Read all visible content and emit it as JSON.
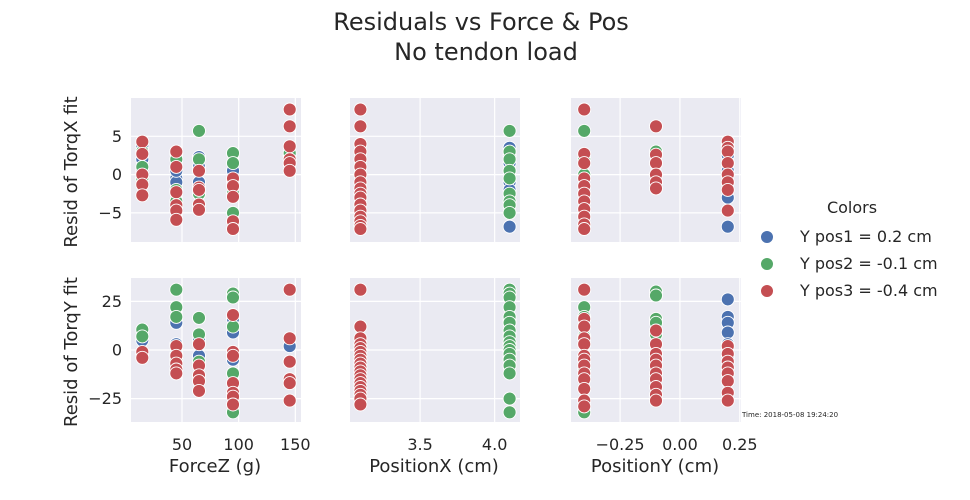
{
  "title_lines": [
    "Residuals vs Force & Pos",
    "No tendon load"
  ],
  "timestamp": "Time: 2018-05-08 19:24:20",
  "legend": {
    "title": "Colors",
    "items": [
      {
        "label": "Y pos1 = 0.2 cm",
        "color": "#4c72b0"
      },
      {
        "label": "Y pos2 = -0.1 cm",
        "color": "#55a868"
      },
      {
        "label": "Y pos3 = -0.4 cm",
        "color": "#c44e52"
      }
    ]
  },
  "chart_data": [
    {
      "type": "scatter",
      "row": 0,
      "col": 0,
      "xlabel": "",
      "ylabel": "Resid of TorqX fit",
      "xlim": [
        5,
        155
      ],
      "ylim": [
        -8.8,
        10
      ],
      "xticks": [
        50,
        100,
        150
      ],
      "yticks": [
        -5,
        0,
        5
      ],
      "series": [
        {
          "name": "Y pos1 = 0.2 cm",
          "x": [
            15,
            15,
            15,
            45,
            45,
            45,
            65,
            65,
            65,
            95,
            95,
            145,
            145
          ],
          "y": [
            3.8,
            2.0,
            0.5,
            -0.5,
            -1.0,
            0.5,
            2.3,
            1.0,
            -1.0,
            0.5,
            -1.0,
            2.5,
            1.5
          ]
        },
        {
          "name": "Y pos2 = -0.1 cm",
          "x": [
            15,
            15,
            15,
            45,
            45,
            45,
            45,
            65,
            65,
            65,
            95,
            95,
            95,
            95,
            145
          ],
          "y": [
            1.0,
            -0.5,
            3.0,
            2.8,
            2.0,
            -2.0,
            -3.5,
            5.7,
            2.0,
            -2.5,
            2.8,
            1.5,
            -2.5,
            -5.0,
            2.8
          ]
        },
        {
          "name": "Y pos3 = -0.4 cm",
          "x": [
            15,
            15,
            15,
            15,
            15,
            45,
            45,
            45,
            45,
            45,
            45,
            65,
            65,
            65,
            65,
            65,
            95,
            95,
            95,
            95,
            95,
            145,
            145,
            145,
            145,
            145,
            145
          ],
          "y": [
            4.3,
            2.7,
            0.0,
            -1.3,
            -2.7,
            3.0,
            1.0,
            -2.3,
            -4.0,
            -4.7,
            -5.9,
            0.5,
            -1.7,
            -2.0,
            -3.9,
            -4.6,
            -0.5,
            -1.5,
            -2.9,
            -6.1,
            -7.1,
            8.5,
            6.3,
            3.7,
            2.0,
            1.5,
            0.5
          ]
        }
      ]
    },
    {
      "type": "scatter",
      "row": 0,
      "col": 1,
      "xlabel": "",
      "ylabel": "",
      "xlim": [
        3.03,
        4.17
      ],
      "ylim": [
        -8.8,
        10
      ],
      "xticks": [
        3.5,
        4.0
      ],
      "yticks": [
        -5,
        0,
        5
      ],
      "series": [
        {
          "name": "Y pos1 = 0.2 cm",
          "x": [
            4.1,
            4.1,
            4.1,
            4.1,
            4.1,
            4.1,
            4.1
          ],
          "y": [
            3.5,
            2.5,
            1.5,
            0.5,
            -1.0,
            -2.0,
            -6.8
          ]
        },
        {
          "name": "Y pos2 = -0.1 cm",
          "x": [
            4.1,
            4.1,
            4.1,
            4.1,
            4.1,
            4.1,
            4.1,
            4.1,
            4.1
          ],
          "y": [
            5.7,
            3.0,
            2.0,
            0.5,
            -0.5,
            -2.5,
            -3.5,
            -4.0,
            -5.0
          ]
        },
        {
          "name": "Y pos3 = -0.4 cm",
          "x": [
            3.1,
            3.1,
            3.1,
            3.1,
            3.1,
            3.1,
            3.1,
            3.1,
            3.1,
            3.1,
            3.1,
            3.1,
            3.1,
            3.1,
            3.1,
            3.1,
            3.1
          ],
          "y": [
            8.5,
            6.3,
            4.0,
            3.0,
            2.0,
            1.0,
            0.0,
            -1.0,
            -1.8,
            -2.5,
            -3.0,
            -3.9,
            -4.7,
            -5.5,
            -6.1,
            -6.7,
            -7.1
          ]
        }
      ]
    },
    {
      "type": "scatter",
      "row": 0,
      "col": 2,
      "xlabel": "",
      "ylabel": "",
      "xlim": [
        -0.455,
        0.255
      ],
      "ylim": [
        -8.8,
        10
      ],
      "xticks": [
        -0.25,
        0.0,
        0.25
      ],
      "yticks": [
        -5,
        0,
        5
      ],
      "series": [
        {
          "name": "Y pos1 = 0.2 cm",
          "x": [
            0.2,
            0.2,
            0.2,
            0.2,
            0.2,
            0.2,
            0.2
          ],
          "y": [
            3.8,
            2.5,
            1.5,
            0.5,
            -1.0,
            -3.0,
            -6.8
          ]
        },
        {
          "name": "Y pos2 = -0.1 cm",
          "x": [
            -0.4,
            -0.4,
            -0.4,
            -0.4,
            -0.1,
            -0.1,
            -0.1
          ],
          "y": [
            5.7,
            2.0,
            0.0,
            -2.5,
            3.0,
            1.5,
            -1.0
          ]
        },
        {
          "name": "Y pos3 = -0.4 cm",
          "x": [
            -0.4,
            -0.4,
            -0.4,
            -0.4,
            -0.4,
            -0.4,
            -0.4,
            -0.4,
            -0.4,
            -0.4,
            -0.4,
            -0.1,
            -0.1,
            -0.1,
            -0.1,
            -0.1,
            -0.1,
            0.2,
            0.2,
            0.2,
            0.2,
            0.2,
            0.2,
            0.2,
            0.2
          ],
          "y": [
            8.5,
            2.7,
            1.5,
            -0.5,
            -1.5,
            -2.5,
            -3.5,
            -4.5,
            -5.5,
            -6.5,
            -7.1,
            6.3,
            2.6,
            1.5,
            0.0,
            -1.0,
            -1.8,
            4.3,
            3.5,
            3.0,
            1.5,
            0.0,
            -1.0,
            -2.0,
            -4.7
          ]
        }
      ]
    },
    {
      "type": "scatter",
      "row": 1,
      "col": 0,
      "xlabel": "ForceZ (g)",
      "ylabel": "Resid of TorqY fit",
      "xlim": [
        5,
        155
      ],
      "ylim": [
        -37,
        37
      ],
      "xticks": [
        50,
        100,
        150
      ],
      "yticks": [
        -25,
        0,
        25
      ],
      "series": [
        {
          "name": "Y pos1 = 0.2 cm",
          "x": [
            15,
            15,
            45,
            45,
            45,
            65,
            65,
            95,
            95,
            95,
            145,
            145
          ],
          "y": [
            5.0,
            -2.0,
            14.0,
            3.0,
            -2.0,
            5.0,
            -3.0,
            9.0,
            16.0,
            -5.0,
            2.0,
            -6.0
          ]
        },
        {
          "name": "Y pos2 = -0.1 cm",
          "x": [
            15,
            15,
            45,
            45,
            45,
            45,
            65,
            65,
            65,
            95,
            95,
            95,
            95,
            95
          ],
          "y": [
            10.5,
            7.0,
            31.0,
            22.0,
            17.0,
            -5.0,
            16.5,
            8.0,
            -6.0,
            29.0,
            27.0,
            12.0,
            -12.0,
            -32.0
          ]
        },
        {
          "name": "Y pos3 = -0.4 cm",
          "x": [
            15,
            15,
            45,
            45,
            45,
            45,
            45,
            65,
            65,
            65,
            65,
            65,
            95,
            95,
            95,
            95,
            95,
            95,
            95,
            145,
            145,
            145,
            145,
            145,
            145
          ],
          "y": [
            -1.0,
            -4.0,
            2.0,
            -3.0,
            -7.0,
            -10.0,
            -12.0,
            3.0,
            -8.0,
            -13.0,
            -16.0,
            -21.0,
            18.0,
            -1.0,
            -3.0,
            -17.0,
            -22.0,
            -24.0,
            -28.0,
            31.0,
            6.0,
            -6.0,
            -15.0,
            -17.0,
            -26.0
          ]
        }
      ]
    },
    {
      "type": "scatter",
      "row": 1,
      "col": 1,
      "xlabel": "PositionX (cm)",
      "ylabel": "",
      "xlim": [
        3.03,
        4.17
      ],
      "ylim": [
        -37,
        37
      ],
      "xticks": [
        3.5,
        4.0
      ],
      "yticks": [
        -25,
        0,
        25
      ],
      "series": [
        {
          "name": "Y pos1 = 0.2 cm",
          "x": [
            4.1,
            4.1,
            4.1,
            4.1,
            4.1,
            4.1
          ],
          "y": [
            15.0,
            8.0,
            3.0,
            -1.0,
            -4.0,
            -8.0
          ]
        },
        {
          "name": "Y pos2 = -0.1 cm",
          "x": [
            4.1,
            4.1,
            4.1,
            4.1,
            4.1,
            4.1,
            4.1,
            4.1,
            4.1,
            4.1,
            4.1,
            4.1,
            4.1,
            4.1,
            4.1,
            4.1,
            4.1
          ],
          "y": [
            31.0,
            29.0,
            27.0,
            22.0,
            17.0,
            14.0,
            10.0,
            7.0,
            4.0,
            2.0,
            0.0,
            -2.0,
            -5.0,
            -8.0,
            -12.0,
            -25.0,
            -32.0
          ]
        },
        {
          "name": "Y pos3 = -0.4 cm",
          "x": [
            3.1,
            3.1,
            3.1,
            3.1,
            3.1,
            3.1,
            3.1,
            3.1,
            3.1,
            3.1,
            3.1,
            3.1,
            3.1,
            3.1,
            3.1,
            3.1,
            3.1,
            3.1,
            3.1
          ],
          "y": [
            31.0,
            12.0,
            6.0,
            3.0,
            1.0,
            -1.0,
            -3.0,
            -5.0,
            -7.0,
            -9.0,
            -11.0,
            -13.0,
            -15.0,
            -17.0,
            -19.0,
            -21.0,
            -23.0,
            -25.0,
            -28.0
          ]
        }
      ]
    },
    {
      "type": "scatter",
      "row": 1,
      "col": 2,
      "xlabel": "PositionY (cm)",
      "ylabel": "",
      "xlim": [
        -0.455,
        0.255
      ],
      "ylim": [
        -37,
        37
      ],
      "xticks": [
        -0.25,
        0.0,
        0.25
      ],
      "yticks": [
        -25,
        0,
        25
      ],
      "series": [
        {
          "name": "Y pos1 = 0.2 cm",
          "x": [
            0.2,
            0.2,
            0.2,
            0.2,
            0.2,
            0.2
          ],
          "y": [
            26.0,
            17.0,
            14.0,
            9.0,
            3.0,
            -4.0
          ]
        },
        {
          "name": "Y pos2 = -0.1 cm",
          "x": [
            -0.4,
            -0.4,
            -0.4,
            -0.4,
            -0.4,
            -0.1,
            -0.1,
            -0.1,
            -0.1,
            -0.1
          ],
          "y": [
            22.0,
            17.0,
            7.0,
            -10.0,
            -32.0,
            30.0,
            28.0,
            16.0,
            14.0,
            8.0
          ]
        },
        {
          "name": "Y pos3 = -0.4 cm",
          "x": [
            -0.4,
            -0.4,
            -0.4,
            -0.4,
            -0.4,
            -0.4,
            -0.4,
            -0.4,
            -0.4,
            -0.4,
            -0.4,
            -0.4,
            -0.4,
            -0.1,
            -0.1,
            -0.1,
            -0.1,
            -0.1,
            -0.1,
            -0.1,
            -0.1,
            -0.1,
            -0.1,
            0.2,
            0.2,
            0.2,
            0.2,
            0.2,
            0.2,
            0.2,
            0.2
          ],
          "y": [
            31.0,
            16.0,
            12.0,
            6.0,
            3.0,
            -3.0,
            -5.0,
            -8.0,
            -12.0,
            -15.0,
            -20.0,
            -26.0,
            -29.0,
            10.0,
            3.0,
            -2.0,
            -5.0,
            -8.0,
            -12.0,
            -15.0,
            -19.0,
            -23.0,
            -26.0,
            2.0,
            -2.0,
            -6.0,
            -9.0,
            -12.0,
            -16.0,
            -22.0,
            -26.0
          ]
        }
      ]
    }
  ]
}
